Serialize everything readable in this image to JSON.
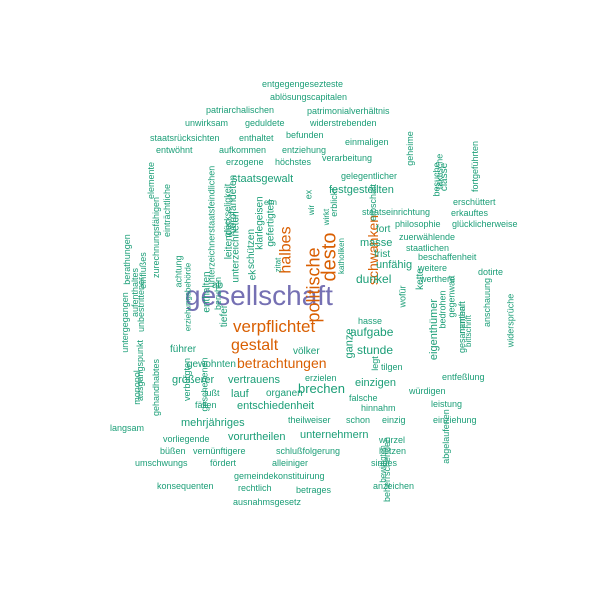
{
  "colors": {
    "largest": "#7570b3",
    "large": "#d95f02",
    "small": "#1b9e77"
  },
  "words": [
    {
      "text": "gesellschaft",
      "tier": "largest"
    },
    {
      "text": "verpflichtet",
      "tier": "large"
    },
    {
      "text": "gestalt",
      "tier": "large"
    },
    {
      "text": "betrachtungen",
      "tier": "large"
    },
    {
      "text": "desto",
      "tier": "large"
    },
    {
      "text": "politische",
      "tier": "large"
    },
    {
      "text": "halbes",
      "tier": "large"
    },
    {
      "text": "schwanken",
      "tier": "large"
    },
    {
      "text": "entgegengesezteste",
      "tier": "small"
    },
    {
      "text": "ablösungscapitalen",
      "tier": "small"
    },
    {
      "text": "patriarchalischen",
      "tier": "small"
    },
    {
      "text": "patrimonialverhältnis",
      "tier": "small"
    },
    {
      "text": "unwirksam",
      "tier": "small"
    },
    {
      "text": "geduldete",
      "tier": "small"
    },
    {
      "text": "widerstrebenden",
      "tier": "small"
    },
    {
      "text": "befunden",
      "tier": "small"
    },
    {
      "text": "staatsrücksichten",
      "tier": "small"
    },
    {
      "text": "enthaltet",
      "tier": "small"
    },
    {
      "text": "einmaligen",
      "tier": "small"
    },
    {
      "text": "entwöhnt",
      "tier": "small"
    },
    {
      "text": "aufkommen",
      "tier": "small"
    },
    {
      "text": "entziehung",
      "tier": "small"
    },
    {
      "text": "erzogene",
      "tier": "small"
    },
    {
      "text": "höchstes",
      "tier": "small"
    },
    {
      "text": "verarbeitung",
      "tier": "small"
    },
    {
      "text": "gelegentlicher",
      "tier": "small"
    },
    {
      "text": "staatsgewalt",
      "tier": "small"
    },
    {
      "text": "festgestellten",
      "tier": "small"
    },
    {
      "text": "staatseinrichtung",
      "tier": "small"
    },
    {
      "text": "philosophie",
      "tier": "small"
    },
    {
      "text": "zuerwählende",
      "tier": "small"
    },
    {
      "text": "staatlichen",
      "tier": "small"
    },
    {
      "text": "beschaffenheit",
      "tier": "small"
    },
    {
      "text": "weitere",
      "tier": "small"
    },
    {
      "text": "werthere",
      "tier": "small"
    },
    {
      "text": "dotirte",
      "tier": "small"
    },
    {
      "text": "erschüttert",
      "tier": "small"
    },
    {
      "text": "erkauftes",
      "tier": "small"
    },
    {
      "text": "glücklicherweise",
      "tier": "small"
    },
    {
      "text": "dunkel",
      "tier": "small"
    },
    {
      "text": "unfähig",
      "tier": "small"
    },
    {
      "text": "masse",
      "tier": "small"
    },
    {
      "text": "fort",
      "tier": "small"
    },
    {
      "text": "frist",
      "tier": "small"
    },
    {
      "text": "hasse",
      "tier": "small"
    },
    {
      "text": "aufgabe",
      "tier": "small"
    },
    {
      "text": "stunde",
      "tier": "small"
    },
    {
      "text": "völker",
      "tier": "small"
    },
    {
      "text": "tilgen",
      "tier": "small"
    },
    {
      "text": "führer",
      "tier": "small"
    },
    {
      "text": "gewohnten",
      "tier": "small"
    },
    {
      "text": "größerer",
      "tier": "small"
    },
    {
      "text": "vertrauens",
      "tier": "small"
    },
    {
      "text": "brechen",
      "tier": "small"
    },
    {
      "text": "erzielen",
      "tier": "small"
    },
    {
      "text": "einzigen",
      "tier": "small"
    },
    {
      "text": "fußt",
      "tier": "small"
    },
    {
      "text": "lauf",
      "tier": "small"
    },
    {
      "text": "organen",
      "tier": "small"
    },
    {
      "text": "fällen",
      "tier": "small"
    },
    {
      "text": "falsche",
      "tier": "small"
    },
    {
      "text": "hinnahm",
      "tier": "small"
    },
    {
      "text": "würdigen",
      "tier": "small"
    },
    {
      "text": "entfeßlung",
      "tier": "small"
    },
    {
      "text": "leistung",
      "tier": "small"
    },
    {
      "text": "entschiedenheit",
      "tier": "small"
    },
    {
      "text": "mehrjähriges",
      "tier": "small"
    },
    {
      "text": "theilweiser",
      "tier": "small"
    },
    {
      "text": "schon",
      "tier": "small"
    },
    {
      "text": "einzig",
      "tier": "small"
    },
    {
      "text": "einziehung",
      "tier": "small"
    },
    {
      "text": "vorurtheilen",
      "tier": "small"
    },
    {
      "text": "unternehmern",
      "tier": "small"
    },
    {
      "text": "wurzel",
      "tier": "small"
    },
    {
      "text": "hetzen",
      "tier": "small"
    },
    {
      "text": "sinnes",
      "tier": "small"
    },
    {
      "text": "vorliegende",
      "tier": "small"
    },
    {
      "text": "büßen",
      "tier": "small"
    },
    {
      "text": "vernünftigere",
      "tier": "small"
    },
    {
      "text": "schlußfolgerung",
      "tier": "small"
    },
    {
      "text": "umschwungs",
      "tier": "small"
    },
    {
      "text": "fördert",
      "tier": "small"
    },
    {
      "text": "alleiniger",
      "tier": "small"
    },
    {
      "text": "gemeindekonstituirung",
      "tier": "small"
    },
    {
      "text": "konsequenten",
      "tier": "small"
    },
    {
      "text": "rechtlich",
      "tier": "small"
    },
    {
      "text": "betrages",
      "tier": "small"
    },
    {
      "text": "anzeichen",
      "tier": "small"
    },
    {
      "text": "ausnahmsgesetz",
      "tier": "small"
    },
    {
      "text": "langsam",
      "tier": "small"
    },
    {
      "text": "ab",
      "tier": "small"
    },
    {
      "text": "ek",
      "tier": "small"
    },
    {
      "text": "elm",
      "tier": "small"
    },
    {
      "text": "ex",
      "tier": "small"
    },
    {
      "text": "wir",
      "tier": "small"
    },
    {
      "text": "ganze",
      "tier": "small"
    },
    {
      "text": "legt",
      "tier": "small"
    },
    {
      "text": "eigenthümer",
      "tier": "small"
    },
    {
      "text": "kette",
      "tier": "small"
    },
    {
      "text": "wofür",
      "tier": "small"
    },
    {
      "text": "bedrohen",
      "tier": "small"
    },
    {
      "text": "gegenwart",
      "tier": "small"
    },
    {
      "text": "namhaft",
      "tier": "small"
    },
    {
      "text": "bittschrift",
      "tier": "small"
    },
    {
      "text": "gesammten",
      "tier": "small"
    },
    {
      "text": "anschauung",
      "tier": "small"
    },
    {
      "text": "widersprüche",
      "tier": "small"
    },
    {
      "text": "abgelaufenen",
      "tier": "small"
    },
    {
      "text": "beherrschenden",
      "tier": "small"
    },
    {
      "text": "bewilligten",
      "tier": "small"
    },
    {
      "text": "geheime",
      "tier": "small"
    },
    {
      "text": "besuche",
      "tier": "small"
    },
    {
      "text": "faktische",
      "tier": "small"
    },
    {
      "text": "classe",
      "tier": "small"
    },
    {
      "text": "fortgeführten",
      "tier": "small"
    },
    {
      "text": "erbschaft",
      "tier": "small"
    },
    {
      "text": "erblickt",
      "tier": "small"
    },
    {
      "text": "wirkt",
      "tier": "small"
    },
    {
      "text": "katholiken",
      "tier": "small"
    },
    {
      "text": "zitat",
      "tier": "small"
    },
    {
      "text": "gefertigten",
      "tier": "small"
    },
    {
      "text": "klarlegeisen",
      "tier": "small"
    },
    {
      "text": "verpfändeten",
      "tier": "small"
    },
    {
      "text": "schützen",
      "tier": "small"
    },
    {
      "text": "tiefer",
      "tier": "small"
    },
    {
      "text": "unterzeichneten",
      "tier": "small"
    },
    {
      "text": "glückseligkeit",
      "tier": "small"
    },
    {
      "text": "leitenden",
      "tier": "small"
    },
    {
      "text": "beruhen",
      "tier": "small"
    },
    {
      "text": "enthalten",
      "tier": "small"
    },
    {
      "text": "achtung",
      "tier": "small"
    },
    {
      "text": "unterzeichnerstaatsfeindlichen",
      "tier": "small"
    },
    {
      "text": "erziehungsbehörde",
      "tier": "small"
    },
    {
      "text": "einträchtliche",
      "tier": "small"
    },
    {
      "text": "elemente",
      "tier": "small"
    },
    {
      "text": "einflußes",
      "tier": "small"
    },
    {
      "text": "unbestrittener",
      "tier": "small"
    },
    {
      "text": "aufenthaltes",
      "tier": "small"
    },
    {
      "text": "zurechnungsfähigen",
      "tier": "small"
    },
    {
      "text": "berathungen",
      "tier": "small"
    },
    {
      "text": "untergegangen",
      "tier": "small"
    },
    {
      "text": "ausgangspunkt",
      "tier": "small"
    },
    {
      "text": "monopol",
      "tier": "small"
    },
    {
      "text": "gehandhabtes",
      "tier": "small"
    },
    {
      "text": "verbürgten",
      "tier": "small"
    },
    {
      "text": "geschehenen",
      "tier": "small"
    },
    {
      "text": "natürlichen",
      "tier": "small"
    },
    {
      "text": "erübrigt",
      "tier": "small"
    }
  ]
}
